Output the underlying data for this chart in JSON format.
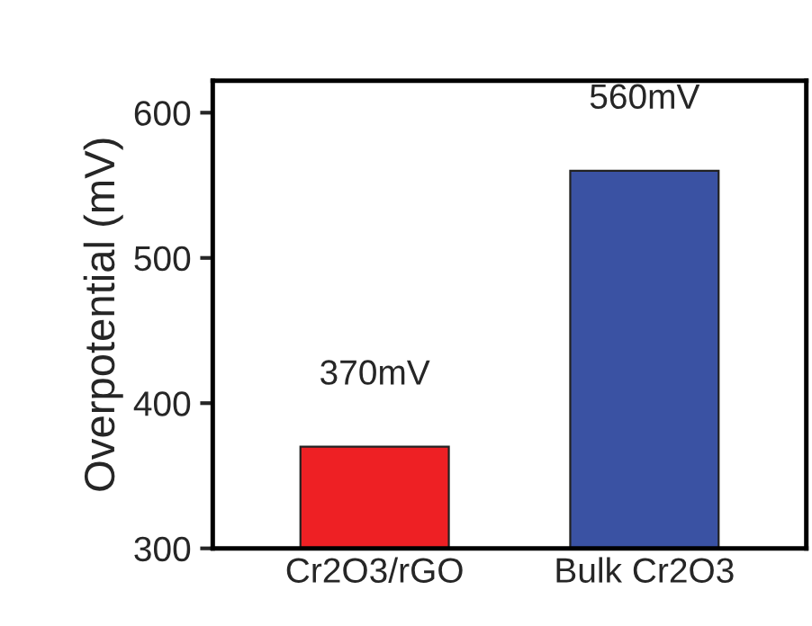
{
  "chart_data": {
    "type": "bar",
    "ylabel": "Overpotential (mV)",
    "categories": [
      "Cr2O3/rGO",
      "Bulk Cr2O3"
    ],
    "values": [
      370,
      560
    ],
    "colors": [
      "#ee2024",
      "#3a52a3"
    ],
    "value_labels": [
      "370mV",
      "560mV"
    ],
    "ylim": [
      300,
      622
    ],
    "yticks": [
      300,
      400,
      500,
      600
    ],
    "grid": false,
    "legend": false
  }
}
